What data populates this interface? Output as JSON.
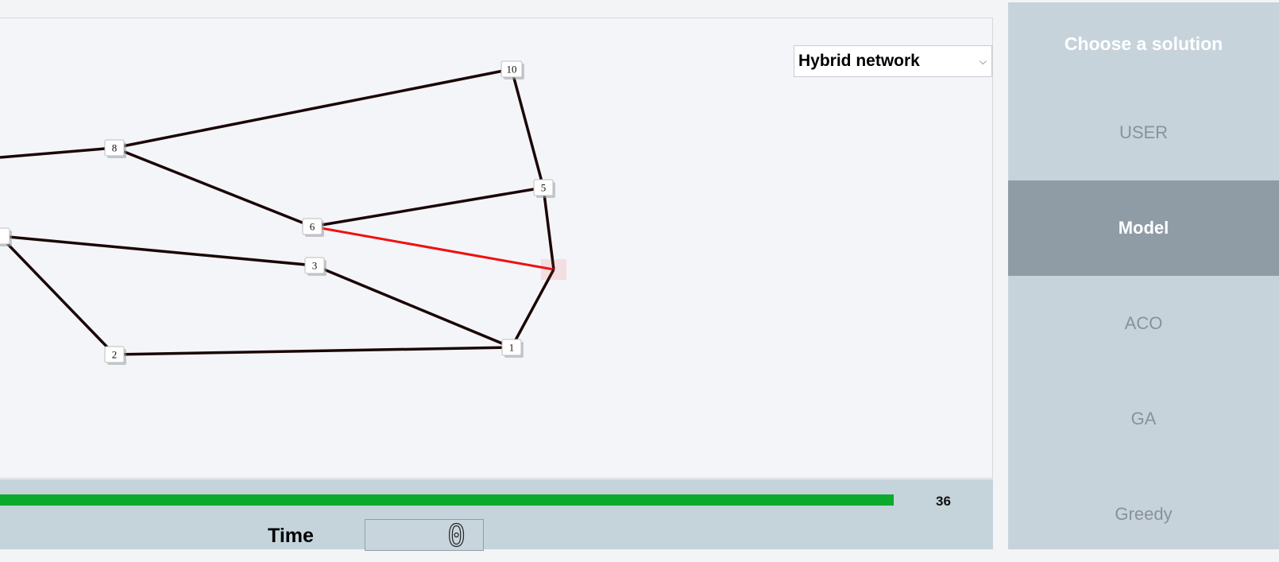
{
  "network_selector": {
    "value": "Hybrid network",
    "chevron_icon": "chevron-down-icon"
  },
  "graph": {
    "nodes": [
      {
        "id": "10",
        "label": "10"
      },
      {
        "id": "8",
        "label": "8"
      },
      {
        "id": "5",
        "label": "5"
      },
      {
        "id": "6",
        "label": "6"
      },
      {
        "id": "3",
        "label": "3"
      },
      {
        "id": "1",
        "label": "1"
      },
      {
        "id": "2",
        "label": "2"
      },
      {
        "id": "left",
        "label": ""
      },
      {
        "id": "selected",
        "label": ""
      }
    ],
    "edges": [
      {
        "from": "8",
        "to": "10",
        "highlight": false
      },
      {
        "from": "10",
        "to": "5",
        "highlight": false
      },
      {
        "from": "8",
        "to": "6",
        "highlight": false
      },
      {
        "from": "6",
        "to": "5",
        "highlight": false
      },
      {
        "from": "5",
        "to": "selected",
        "highlight": false
      },
      {
        "from": "6",
        "to": "selected",
        "highlight": true
      },
      {
        "from": "selected",
        "to": "1",
        "highlight": false
      },
      {
        "from": "3",
        "to": "1",
        "highlight": false
      },
      {
        "from": "2",
        "to": "1",
        "highlight": false
      },
      {
        "from": "left",
        "to": "3",
        "highlight": false
      },
      {
        "from": "left",
        "to": "2",
        "highlight": false
      }
    ],
    "colors": {
      "edge": "#1a0606",
      "highlight": "#ee1111"
    }
  },
  "progress": {
    "value": "36",
    "fraction": 0.97,
    "color": "#0caa2c"
  },
  "time": {
    "label": "Time",
    "value": "0"
  },
  "sidebar": {
    "title": "Choose a solution",
    "items": [
      {
        "label": "USER",
        "active": false
      },
      {
        "label": "Model",
        "active": true
      },
      {
        "label": "ACO",
        "active": false
      },
      {
        "label": "GA",
        "active": false
      },
      {
        "label": "Greedy",
        "active": false
      }
    ]
  }
}
